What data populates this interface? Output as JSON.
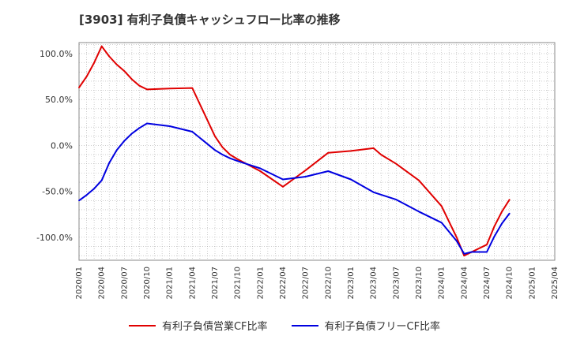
{
  "title": "[3903]  有利子負債キャッシュフロー比率の推移",
  "chart_data": {
    "type": "line",
    "title": "[3903]  有利子負債キャッシュフロー比率の推移",
    "xlabel": "",
    "ylabel": "",
    "ylim": [
      -125,
      112
    ],
    "y_ticks": [
      100,
      50,
      0,
      -50,
      -100
    ],
    "y_tick_labels": [
      "100.0%",
      "50.0%",
      "0.0%",
      "-50.0%",
      "-100.0%"
    ],
    "x_ticks": [
      "2020/01",
      "2020/04",
      "2020/07",
      "2020/10",
      "2021/01",
      "2021/04",
      "2021/07",
      "2021/10",
      "2022/01",
      "2022/04",
      "2022/07",
      "2022/10",
      "2023/01",
      "2023/04",
      "2023/07",
      "2023/10",
      "2024/01",
      "2024/04",
      "2024/07",
      "2024/10",
      "2025/01",
      "2025/04"
    ],
    "grid": true,
    "legend_position": "bottom",
    "series": [
      {
        "name": "有利子負債営業CF比率",
        "color": "#e00000",
        "points": [
          [
            "2020/01",
            63
          ],
          [
            "2020/02",
            75
          ],
          [
            "2020/03",
            90
          ],
          [
            "2020/04",
            108
          ],
          [
            "2020/05",
            97
          ],
          [
            "2020/06",
            88
          ],
          [
            "2020/07",
            81
          ],
          [
            "2020/08",
            72
          ],
          [
            "2020/09",
            65
          ],
          [
            "2020/10",
            61
          ],
          [
            "2021/01",
            62
          ],
          [
            "2021/04",
            62.5
          ],
          [
            "2021/07",
            10
          ],
          [
            "2021/08",
            -2
          ],
          [
            "2021/09",
            -10
          ],
          [
            "2021/10",
            -15
          ],
          [
            "2022/01",
            -28
          ],
          [
            "2022/04",
            -45
          ],
          [
            "2022/07",
            -27
          ],
          [
            "2022/10",
            -8
          ],
          [
            "2023/01",
            -6
          ],
          [
            "2023/04",
            -3
          ],
          [
            "2023/05",
            -10
          ],
          [
            "2023/07",
            -20
          ],
          [
            "2023/10",
            -38
          ],
          [
            "2024/01",
            -66
          ],
          [
            "2024/03",
            -100
          ],
          [
            "2024/04",
            -120
          ],
          [
            "2024/05",
            -116
          ],
          [
            "2024/07",
            -108
          ],
          [
            "2024/08",
            -88
          ],
          [
            "2024/09",
            -72
          ],
          [
            "2024/10",
            -59
          ]
        ]
      },
      {
        "name": "有利子負債フリーCF比率",
        "color": "#0000e0",
        "points": [
          [
            "2020/01",
            -60
          ],
          [
            "2020/02",
            -54
          ],
          [
            "2020/03",
            -47
          ],
          [
            "2020/04",
            -38
          ],
          [
            "2020/05",
            -19
          ],
          [
            "2020/06",
            -5
          ],
          [
            "2020/07",
            5
          ],
          [
            "2020/08",
            13
          ],
          [
            "2020/09",
            19
          ],
          [
            "2020/10",
            24
          ],
          [
            "2021/01",
            21
          ],
          [
            "2021/04",
            15
          ],
          [
            "2021/07",
            -5
          ],
          [
            "2021/08",
            -10
          ],
          [
            "2021/09",
            -14
          ],
          [
            "2021/10",
            -17
          ],
          [
            "2022/01",
            -25
          ],
          [
            "2022/04",
            -37
          ],
          [
            "2022/07",
            -34
          ],
          [
            "2022/10",
            -28
          ],
          [
            "2023/01",
            -37
          ],
          [
            "2023/04",
            -51
          ],
          [
            "2023/07",
            -59
          ],
          [
            "2023/10",
            -72
          ],
          [
            "2024/01",
            -84
          ],
          [
            "2024/03",
            -104
          ],
          [
            "2024/04",
            -118
          ],
          [
            "2024/05",
            -116
          ],
          [
            "2024/07",
            -116
          ],
          [
            "2024/08",
            -99
          ],
          [
            "2024/09",
            -85
          ],
          [
            "2024/10",
            -74
          ]
        ]
      }
    ]
  }
}
